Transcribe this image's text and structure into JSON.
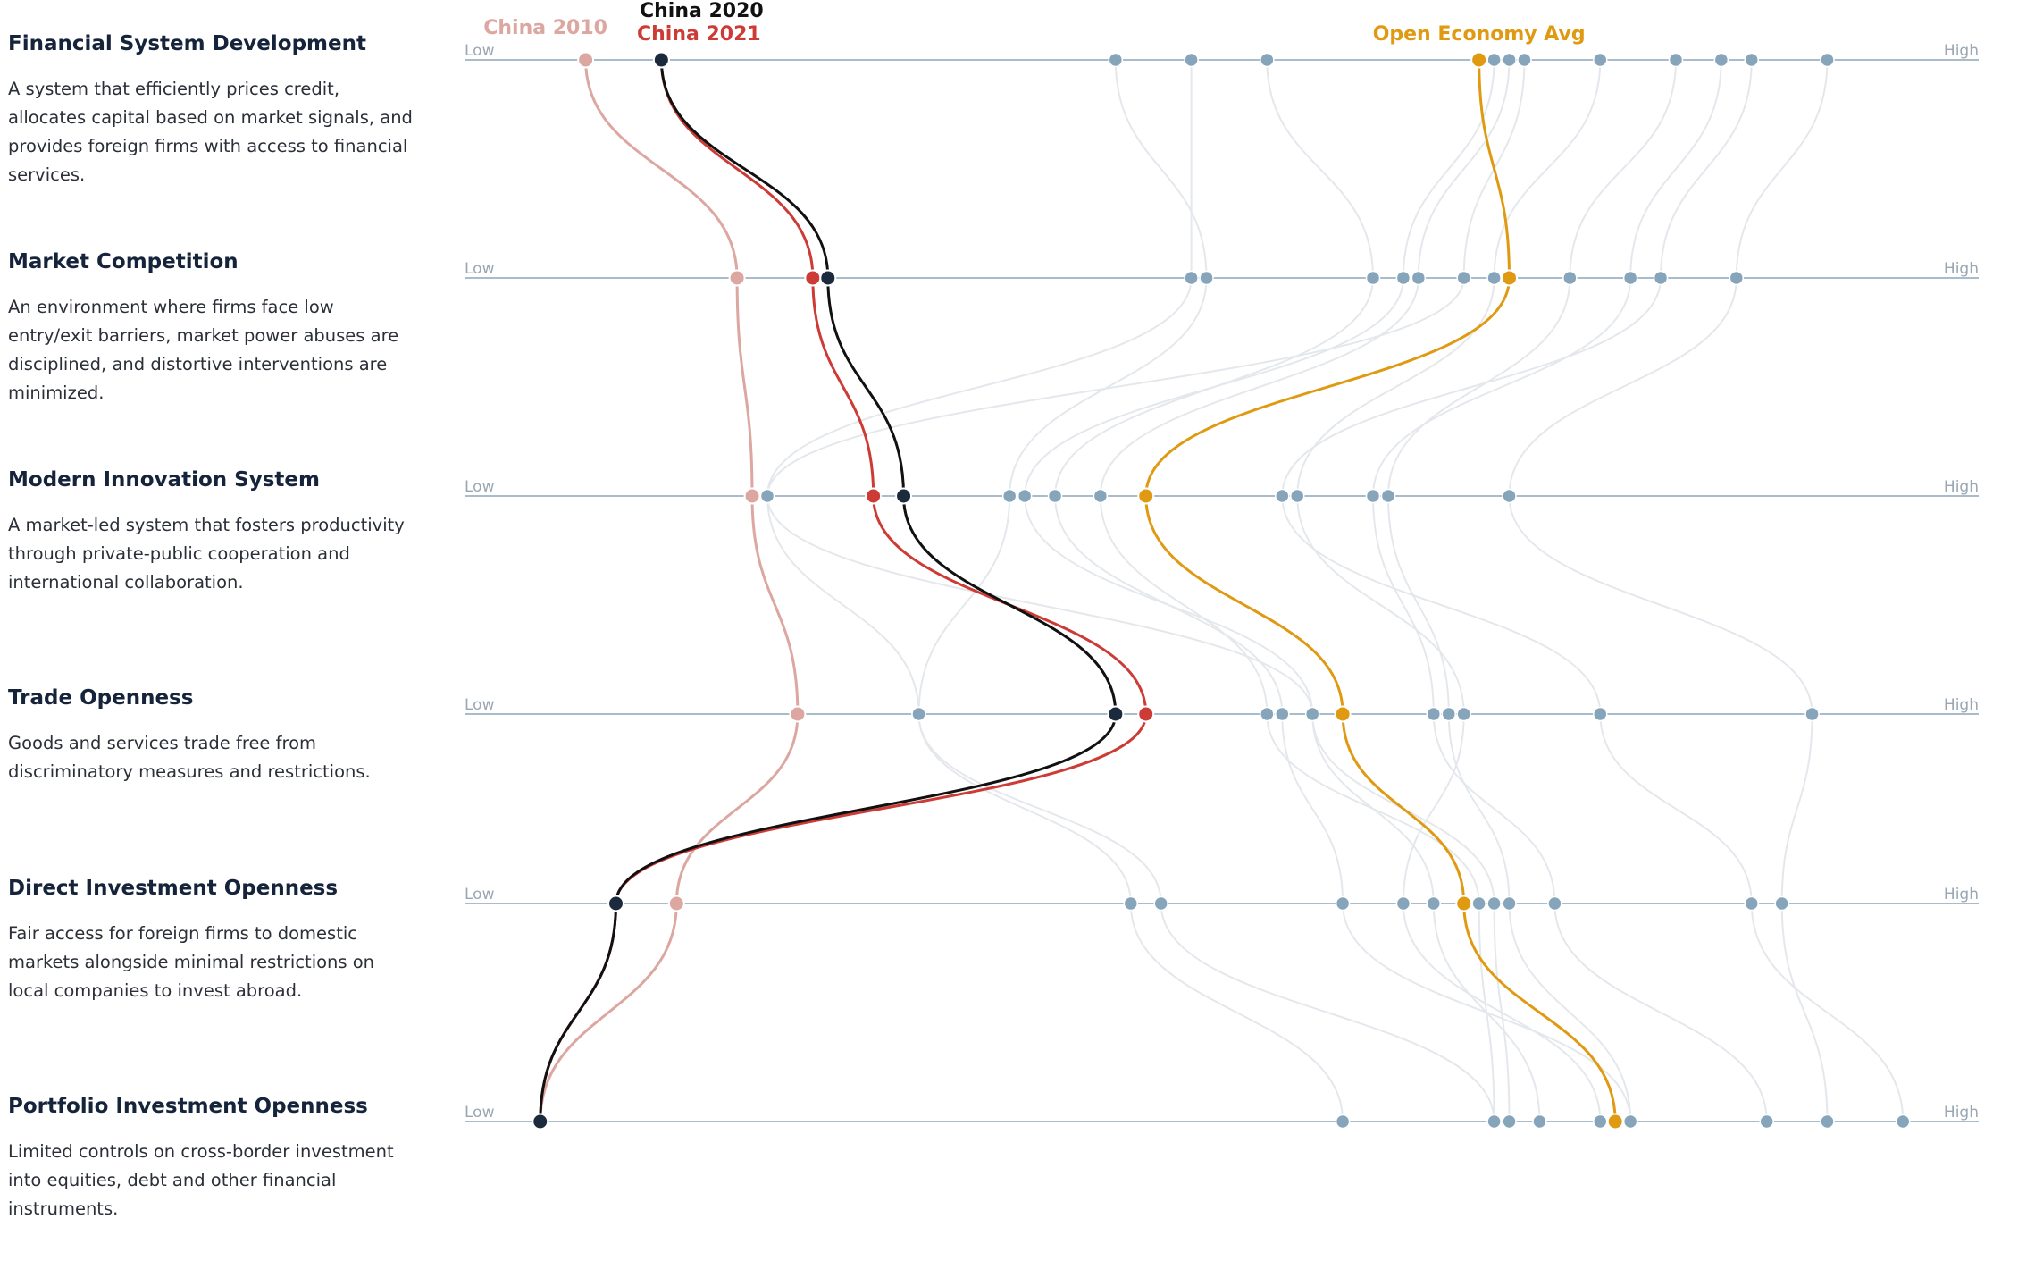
{
  "dimensions": [
    {
      "title": "Financial System Development",
      "description": "A system that efficiently prices credit, allocates capital based on market signals, and provides foreign firms with access to financial services."
    },
    {
      "title": "Market Competition",
      "description": "An environment where firms face low entry/exit barriers, market power abuses are disciplined, and distortive interventions are minimized."
    },
    {
      "title": "Modern Innovation System",
      "description": "A market-led system that fosters productivity through private-public cooperation and international collaboration."
    },
    {
      "title": "Trade Openness",
      "description": "Goods and services trade free from discriminatory measures and restrictions."
    },
    {
      "title": "Direct Investment Openness",
      "description": "Fair access for foreign firms to domestic markets alongside minimal restrictions on local companies to invest abroad."
    },
    {
      "title": "Portfolio Investment Openness",
      "description": "Limited controls on cross-border investment into equities, debt and other financial instruments."
    }
  ],
  "axis_labels": {
    "low": "Low",
    "high": "High"
  },
  "colors": {
    "china2010": "#dca7a1",
    "china2020": "#1b2a3d",
    "china2020_line": "#111111",
    "china2021": "#cc3b36",
    "open_avg": "#e09a12",
    "other_dot": "#86a5ba",
    "other_line": "#e4e8ec",
    "axis": "#a8bccb"
  },
  "chart_data": {
    "type": "parallel-coordinates",
    "scale": "0 = Low, 100 = High",
    "axes": [
      "Financial System Development",
      "Market Competition",
      "Modern Innovation System",
      "Trade Openness",
      "Direct Investment Openness",
      "Portfolio Investment Openness"
    ],
    "series": [
      {
        "name": "China 2010",
        "key": "china2010",
        "values": [
          8,
          18,
          19,
          22,
          14,
          5
        ]
      },
      {
        "name": "China 2020",
        "key": "china2020",
        "values": [
          13,
          24,
          29,
          43,
          10,
          5
        ]
      },
      {
        "name": "China 2021",
        "key": "china2021",
        "values": [
          13,
          23,
          27,
          45,
          10,
          5
        ]
      },
      {
        "name": "Open Economy Avg",
        "key": "open_avg",
        "values": [
          67,
          69,
          45,
          58,
          66,
          76
        ]
      }
    ],
    "other_economies": [
      [
        43,
        49,
        36,
        30,
        44,
        58
      ],
      [
        48,
        48,
        20,
        30,
        46,
        68
      ],
      [
        53,
        60,
        39,
        54,
        58,
        77
      ],
      [
        68,
        62,
        37,
        56,
        68,
        69
      ],
      [
        69,
        63,
        42,
        53,
        67,
        68
      ],
      [
        70,
        66,
        20,
        56,
        64,
        71
      ],
      [
        75,
        68,
        55,
        66,
        62,
        75
      ],
      [
        80,
        73,
        61,
        65,
        69,
        77
      ],
      [
        83,
        77,
        60,
        64,
        72,
        86
      ],
      [
        85,
        79,
        54,
        75,
        85,
        95
      ],
      [
        90,
        84,
        69,
        89,
        87,
        90
      ]
    ]
  }
}
